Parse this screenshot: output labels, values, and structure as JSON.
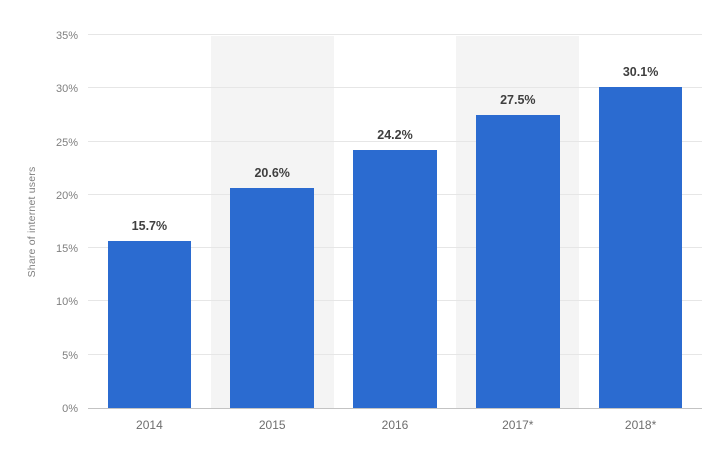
{
  "chart_data": {
    "type": "bar",
    "categories": [
      "2014",
      "2015",
      "2016",
      "2017*",
      "2018*"
    ],
    "values": [
      15.7,
      20.6,
      24.2,
      27.5,
      30.1
    ],
    "labels": [
      "15.7%",
      "20.6%",
      "24.2%",
      "27.5%",
      "30.1%"
    ],
    "title": "",
    "xlabel": "",
    "ylabel": "Share of internet users",
    "ylim": [
      0,
      35
    ],
    "yticks": [
      0,
      5,
      10,
      15,
      20,
      25,
      30,
      35
    ],
    "ytick_labels": [
      "0%",
      "5%",
      "10%",
      "15%",
      "20%",
      "25%",
      "30%",
      "35%"
    ],
    "bar_color": "#2b6bd0",
    "band_color": "#f4f4f4",
    "gridline_color": "#e6e6e6",
    "grid": true,
    "legend": "none"
  }
}
